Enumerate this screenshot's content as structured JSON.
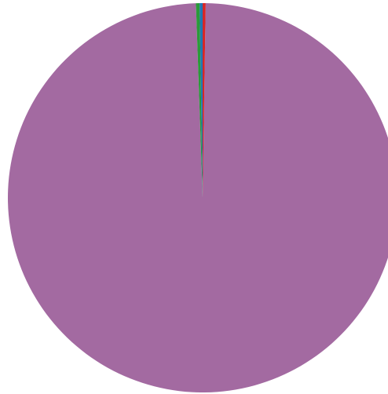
{
  "chart_data": {
    "type": "pie",
    "title": "",
    "start_angle_deg": 0,
    "direction": "counterclockwise-from-top",
    "slices": [
      {
        "value": 0.3,
        "color": "#2a9a3a"
      },
      {
        "value": 0.25,
        "color": "#1f77b4"
      },
      {
        "value": 0.25,
        "color": "#d62728"
      },
      {
        "value": 99.2,
        "color": "#a36aa1"
      }
    ]
  }
}
